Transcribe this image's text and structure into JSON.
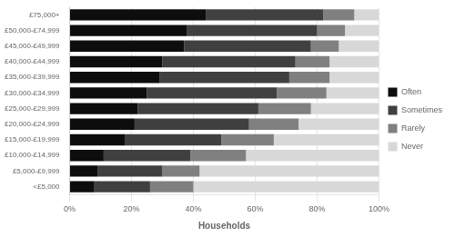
{
  "chart_data": {
    "type": "bar",
    "orientation": "horizontal",
    "stacked": true,
    "categories": [
      "<£5,000",
      "£5,000-£9,999",
      "£10,000-£14,999",
      "£15,000-£19,999",
      "£20,000-£24,999",
      "£25,000-£29,999",
      "£30,000-£34,999",
      "£35,000-£39,999",
      "£40,000-£44,999",
      "£45,000-£49,999",
      "£50,000-£74,999",
      "£75,000+"
    ],
    "series": [
      {
        "name": "Often",
        "color": "#0d0d0d",
        "values": [
          8,
          9,
          11,
          18,
          21,
          22,
          25,
          29,
          30,
          37,
          38,
          44
        ]
      },
      {
        "name": "Sometimes",
        "color": "#404040",
        "values": [
          18,
          21,
          28,
          31,
          37,
          39,
          42,
          42,
          43,
          41,
          42,
          38
        ]
      },
      {
        "name": "Rarely",
        "color": "#808080",
        "values": [
          14,
          12,
          18,
          17,
          16,
          17,
          16,
          13,
          11,
          9,
          9,
          10
        ]
      },
      {
        "name": "Never",
        "color": "#d8d8d8",
        "values": [
          60,
          58,
          43,
          34,
          26,
          22,
          17,
          16,
          16,
          13,
          11,
          8
        ]
      }
    ],
    "xlabel": "Households",
    "xlim": [
      0,
      100
    ],
    "xticks": [
      {
        "value": 0,
        "label": "0%"
      },
      {
        "value": 20,
        "label": "20%"
      },
      {
        "value": 40,
        "label": "40%"
      },
      {
        "value": 60,
        "label": "60%"
      },
      {
        "value": 80,
        "label": "80%"
      },
      {
        "value": 100,
        "label": "100%"
      }
    ],
    "grid": true,
    "legend": "right"
  }
}
